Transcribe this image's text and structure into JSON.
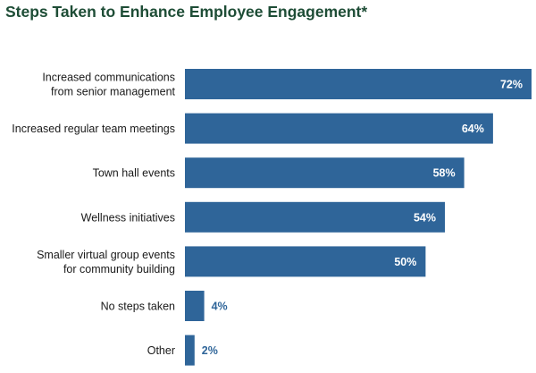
{
  "chart_data": {
    "type": "bar",
    "orientation": "horizontal",
    "title": "Steps Taken to Enhance Employee Engagement*",
    "categories": [
      [
        "Increased communications",
        "from senior management"
      ],
      [
        "Increased regular team meetings"
      ],
      [
        "Town hall events"
      ],
      [
        "Wellness initiatives"
      ],
      [
        "Smaller virtual group events",
        "for community building"
      ],
      [
        "No steps taken"
      ],
      [
        "Other"
      ]
    ],
    "values": [
      72,
      64,
      58,
      54,
      50,
      4,
      2
    ],
    "value_labels": [
      "72%",
      "64%",
      "58%",
      "54%",
      "50%",
      "4%",
      "2%"
    ],
    "unit": "%",
    "xlim": [
      0,
      72
    ],
    "xlabel": "",
    "ylabel": "",
    "grid": false,
    "legend": "none",
    "colors": {
      "bar": "#2f6599",
      "title": "#1e4d36",
      "label_inside": "#ffffff",
      "label_outside": "#2f6599",
      "category_text": "#1a1a1a"
    }
  }
}
